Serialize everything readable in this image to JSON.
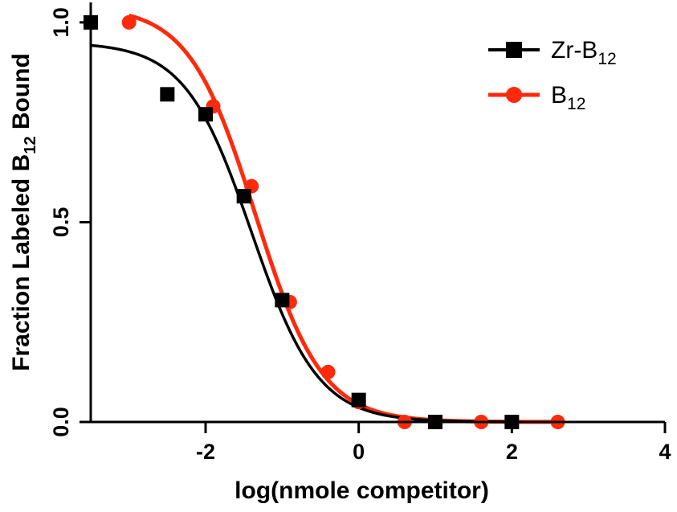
{
  "chart_data": {
    "type": "scatter",
    "xlabel": "log(nmole competitor)",
    "ylabel": {
      "main": "Fraction Labeled B",
      "sub": "12",
      "tail": " Bound"
    },
    "xlim": [
      -3.5,
      4
    ],
    "ylim": [
      0,
      1.05
    ],
    "xticks": [
      -2,
      0,
      2,
      4
    ],
    "xtick_labels": [
      "-2",
      "0",
      "2",
      "4"
    ],
    "yticks": [
      0,
      0.5,
      1.0
    ],
    "ytick_labels": [
      "0.0",
      "0.5",
      "1.0"
    ],
    "legend_position": "top-right",
    "series": [
      {
        "legend": {
          "prefix": "Zr-B",
          "sub": "12"
        },
        "color": "#000000",
        "marker": "square",
        "fit": {
          "top": 0.95,
          "bottom": 0.0,
          "logIC50": -1.4,
          "hill": -1.0
        },
        "points": [
          [
            -3.5,
            1.0
          ],
          [
            -2.5,
            0.82
          ],
          [
            -2.0,
            0.77
          ],
          [
            -1.5,
            0.565
          ],
          [
            -1.0,
            0.305
          ],
          [
            0.0,
            0.055
          ],
          [
            1.0,
            0.0
          ],
          [
            2.0,
            0.0
          ]
        ]
      },
      {
        "legend": {
          "prefix": "B",
          "sub": "12"
        },
        "color": "#ff2a0c",
        "marker": "circle",
        "fit": {
          "top": 1.04,
          "bottom": 0.0,
          "logIC50": -1.35,
          "hill": -1.0
        },
        "points": [
          [
            -3.0,
            1.0
          ],
          [
            -1.9,
            0.79
          ],
          [
            -1.4,
            0.59
          ],
          [
            -0.9,
            0.3
          ],
          [
            -0.4,
            0.125
          ],
          [
            0.0,
            0.05
          ],
          [
            0.6,
            0.0
          ],
          [
            1.6,
            0.0
          ],
          [
            2.6,
            0.0
          ]
        ]
      }
    ]
  }
}
